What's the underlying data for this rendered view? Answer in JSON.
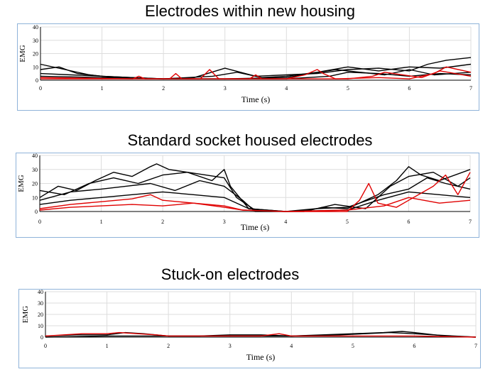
{
  "chart_data": [
    {
      "type": "line",
      "title": "Electrodes within new housing",
      "xlabel": "Time (s)",
      "ylabel": "EMG",
      "xlim": [
        0,
        7
      ],
      "ylim": [
        0,
        40
      ],
      "xticks": [
        "0",
        "1",
        "2",
        "3",
        "4",
        "5",
        "6",
        "7"
      ],
      "yticks": [
        "0",
        "10",
        "20",
        "30",
        "40"
      ],
      "grid": true,
      "colors": {
        "group_a": "#000000",
        "group_b": "#e00000"
      },
      "series": [
        {
          "color": "#000000",
          "x": [
            0,
            0.3,
            0.6,
            1.0,
            1.5,
            2.0,
            2.5,
            3.0,
            3.5,
            4.0,
            4.5,
            5.0,
            5.5,
            6.0,
            6.3,
            6.6,
            7.0
          ],
          "y": [
            8,
            10,
            5,
            3,
            2,
            1,
            2,
            9,
            3,
            4,
            5,
            8,
            9,
            7,
            12,
            15,
            17
          ]
        },
        {
          "color": "#000000",
          "x": [
            0,
            0.4,
            0.8,
            1.2,
            2.0,
            2.8,
            3.2,
            3.6,
            4.0,
            4.5,
            5.0,
            5.5,
            6.0,
            6.5,
            7.0
          ],
          "y": [
            12,
            8,
            4,
            2,
            1,
            3,
            6,
            2,
            3,
            6,
            10,
            7,
            10,
            9,
            12
          ]
        },
        {
          "color": "#000000",
          "x": [
            0,
            0.5,
            1.0,
            1.5,
            2.0,
            3.0,
            4.0,
            4.4,
            4.8,
            5.2,
            5.6,
            6.0,
            6.4,
            7.0
          ],
          "y": [
            5,
            4,
            3,
            2,
            1,
            1,
            2,
            5,
            8,
            6,
            4,
            8,
            4,
            6
          ]
        },
        {
          "color": "#000000",
          "x": [
            0,
            1.0,
            2.0,
            3.0,
            4.0,
            4.7,
            5.0,
            5.5,
            6.0,
            6.5,
            7.0
          ],
          "y": [
            3,
            2,
            1,
            1,
            1,
            3,
            6,
            5,
            3,
            5,
            4
          ]
        },
        {
          "color": "#e00000",
          "x": [
            0,
            1.0,
            2.1,
            2.2,
            2.3,
            2.6,
            2.75,
            2.9,
            4.0,
            4.3,
            4.5,
            4.6,
            4.8,
            5.5,
            6.0,
            6.4,
            6.6,
            7.0
          ],
          "y": [
            1,
            1,
            1,
            5,
            1,
            1,
            8,
            1,
            1,
            4,
            8,
            5,
            1,
            2,
            1,
            5,
            10,
            6
          ]
        },
        {
          "color": "#e00000",
          "x": [
            0,
            1.5,
            1.6,
            1.7,
            3.0,
            3.4,
            3.5,
            3.6,
            5.0,
            5.4,
            5.6,
            6.2,
            6.5,
            7.0
          ],
          "y": [
            2,
            1,
            3,
            1,
            1,
            1,
            4,
            1,
            1,
            3,
            6,
            2,
            7,
            3
          ]
        }
      ]
    },
    {
      "type": "line",
      "title": "Standard socket housed electrodes",
      "xlabel": "Time (s)",
      "ylabel": "EMG",
      "xlim": [
        0,
        7
      ],
      "ylim": [
        0,
        40
      ],
      "xticks": [
        "0",
        "1",
        "2",
        "3",
        "4",
        "5",
        "6",
        "7"
      ],
      "yticks": [
        "0",
        "10",
        "20",
        "30",
        "40"
      ],
      "grid": true,
      "colors": {
        "group_a": "#000000",
        "group_b": "#e00000"
      },
      "series": [
        {
          "color": "#000000",
          "x": [
            0,
            0.3,
            0.6,
            0.9,
            1.2,
            1.5,
            1.8,
            1.9,
            2.1,
            2.4,
            2.7,
            3.0,
            3.2,
            3.5,
            4.0,
            4.3,
            4.6,
            5.0,
            5.5,
            5.8,
            6.0,
            6.2,
            6.5,
            7.0
          ],
          "y": [
            10,
            18,
            15,
            22,
            28,
            25,
            32,
            34,
            30,
            28,
            26,
            24,
            10,
            1,
            0,
            0,
            3,
            2,
            12,
            22,
            32,
            26,
            22,
            30
          ]
        },
        {
          "color": "#000000",
          "x": [
            0,
            0.4,
            0.8,
            1.2,
            1.6,
            2.0,
            2.4,
            2.8,
            3.0,
            3.1,
            3.4,
            4.0,
            4.4,
            4.8,
            5.3,
            5.7,
            6.0,
            6.4,
            6.8,
            7.0
          ],
          "y": [
            15,
            12,
            20,
            24,
            20,
            26,
            28,
            22,
            30,
            18,
            2,
            0,
            1,
            5,
            2,
            18,
            25,
            28,
            18,
            24
          ]
        },
        {
          "color": "#000000",
          "x": [
            0,
            0.5,
            1.0,
            1.4,
            1.8,
            2.2,
            2.6,
            3.0,
            3.3,
            3.5,
            4.0,
            4.5,
            5.0,
            5.6,
            6.0,
            6.3,
            6.6,
            7.0
          ],
          "y": [
            8,
            14,
            16,
            18,
            20,
            15,
            22,
            18,
            8,
            0,
            0,
            2,
            3,
            12,
            16,
            24,
            20,
            16
          ]
        },
        {
          "color": "#000000",
          "x": [
            0,
            0.5,
            1.0,
            1.5,
            2.0,
            2.5,
            3.0,
            3.4,
            4.0,
            5.0,
            5.5,
            6.0,
            6.5,
            7.0
          ],
          "y": [
            5,
            8,
            10,
            12,
            14,
            12,
            10,
            2,
            0,
            1,
            8,
            14,
            12,
            10
          ]
        },
        {
          "color": "#e00000",
          "x": [
            0,
            0.5,
            1.0,
            1.5,
            1.8,
            2.0,
            2.5,
            3.0,
            3.3,
            4.0,
            5.0,
            5.2,
            5.35,
            5.5,
            5.8,
            6.0,
            6.4,
            6.6,
            6.8,
            7.0
          ],
          "y": [
            2,
            5,
            7,
            9,
            12,
            8,
            6,
            4,
            1,
            0,
            0,
            8,
            20,
            6,
            3,
            8,
            18,
            26,
            12,
            28
          ]
        },
        {
          "color": "#e00000",
          "x": [
            0,
            0.5,
            1.0,
            1.5,
            2.0,
            2.5,
            3.0,
            3.3,
            4.0,
            5.0,
            5.6,
            6.0,
            6.5,
            7.0
          ],
          "y": [
            1,
            3,
            4,
            5,
            4,
            6,
            3,
            1,
            0,
            1,
            4,
            10,
            6,
            8
          ]
        }
      ]
    },
    {
      "type": "line",
      "title": "Stuck-on electrodes",
      "xlabel": "Time (s)",
      "ylabel": "EMG",
      "xlim": [
        0,
        7
      ],
      "ylim": [
        0,
        40
      ],
      "xticks": [
        "0",
        "1",
        "2",
        "3",
        "4",
        "5",
        "6",
        "7"
      ],
      "yticks": [
        "0",
        "10",
        "20",
        "30",
        "40"
      ],
      "grid": true,
      "colors": {
        "group_a": "#000000",
        "group_b": "#e00000"
      },
      "series": [
        {
          "color": "#000000",
          "x": [
            0,
            0.5,
            1.0,
            1.3,
            1.6,
            2.0,
            2.5,
            3.0,
            3.5,
            4.0,
            4.5,
            5.0,
            5.5,
            5.8,
            6.0,
            6.5,
            7.0
          ],
          "y": [
            1,
            2,
            2,
            4,
            3,
            1,
            1,
            2,
            2,
            1,
            2,
            3,
            4,
            5,
            4,
            1,
            0
          ]
        },
        {
          "color": "#000000",
          "x": [
            0,
            1.0,
            2.0,
            3.0,
            4.0,
            4.8,
            5.2,
            5.6,
            6.0,
            6.3,
            7.0
          ],
          "y": [
            0,
            1,
            1,
            1,
            1,
            2,
            3,
            4,
            3,
            2,
            0
          ]
        },
        {
          "color": "#e00000",
          "x": [
            0,
            0.3,
            0.6,
            1.0,
            1.2,
            1.5,
            1.8,
            2.0,
            2.5,
            3.0,
            3.5,
            3.8,
            4.0,
            5.0,
            6.0,
            7.0
          ],
          "y": [
            1,
            2,
            3,
            3,
            4,
            3,
            2,
            1,
            1,
            1,
            1,
            3,
            1,
            1,
            1,
            0
          ]
        }
      ]
    }
  ]
}
